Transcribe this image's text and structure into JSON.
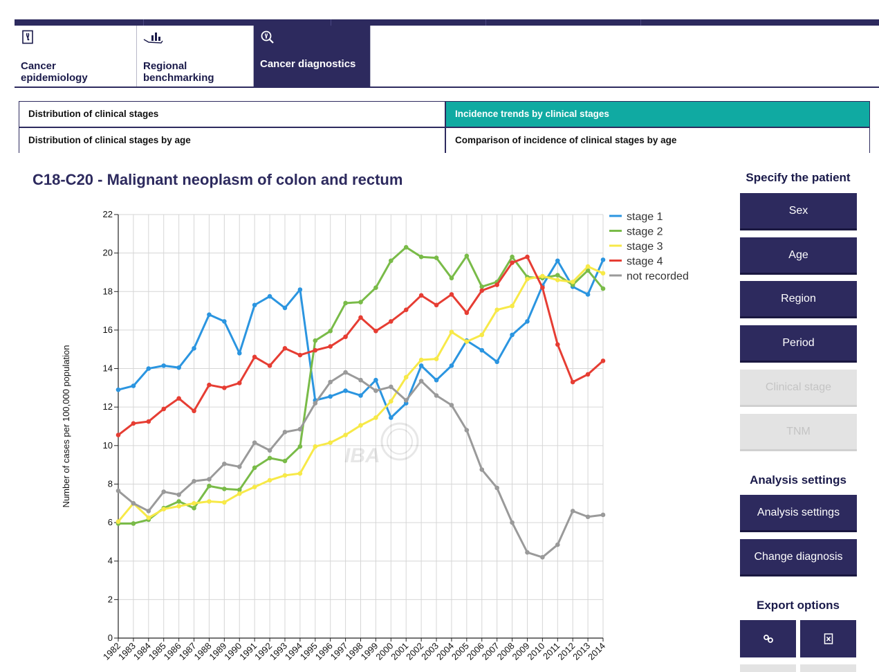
{
  "modules": [
    {
      "label": "Cancer\nepidemiology",
      "icon": "ribbon-document-icon",
      "active": false
    },
    {
      "label": "Regional\nbenchmarking",
      "icon": "hand-chart-icon",
      "active": false
    },
    {
      "label": "Cancer diagnostics",
      "icon": "ribbon-magnifier-icon",
      "active": true
    }
  ],
  "subtabs": {
    "stages": "Distribution of clinical stages",
    "trends": "Incidence trends by clinical stages",
    "stages_age": "Distribution of clinical stages by age",
    "comparison": "Comparison of incidence of clinical stages by age"
  },
  "chart_title": "C18-C20 - Malignant neoplasm of colon and rectum",
  "sidebar": {
    "patient_heading": "Specify the patient",
    "sex": "Sex",
    "age": "Age",
    "region": "Region",
    "period": "Period",
    "clinical_stage": "Clinical stage",
    "tnm": "TNM",
    "analysis_heading": "Analysis settings",
    "analysis_button": "Analysis settings",
    "change_diagnosis": "Change diagnosis",
    "export_heading": "Export options",
    "export_link_icon": "link-icon",
    "export_excel_icon": "excel-export-icon"
  },
  "watermark": {
    "logo": "IBA",
    "seal": "muni-seal"
  },
  "colors": {
    "navy": "#2d2a5e",
    "teal": "#10aaa2",
    "stage1": "#2b95e0",
    "stage2": "#79bb48",
    "stage3": "#f7e948",
    "stage4": "#e63d33",
    "not_recorded": "#9a9a9a"
  },
  "chart_data": {
    "type": "line",
    "title": "C18-C20 - Malignant neoplasm of colon and rectum",
    "xlabel": "",
    "ylabel": "Number of cases per 100,000 population",
    "ylim": [
      0,
      22
    ],
    "yticks": [
      0,
      2,
      4,
      6,
      8,
      10,
      12,
      14,
      16,
      18,
      20,
      22
    ],
    "grid": true,
    "legend": "top-right",
    "x": [
      "1982",
      "1983",
      "1984",
      "1985",
      "1986",
      "1987",
      "1988",
      "1989",
      "1990",
      "1991",
      "1992",
      "1993",
      "1994",
      "1995",
      "1996",
      "1997",
      "1998",
      "1999",
      "2000",
      "2001",
      "2002",
      "2003",
      "2004",
      "2005",
      "2006",
      "2007",
      "2008",
      "2009",
      "2010",
      "2011",
      "2012",
      "2013",
      "2014"
    ],
    "series": [
      {
        "name": "stage 1",
        "color": "#2b95e0",
        "values": [
          12.9,
          13.1,
          14.0,
          14.15,
          14.05,
          15.05,
          16.8,
          16.45,
          14.8,
          17.3,
          17.75,
          17.15,
          18.1,
          12.35,
          12.55,
          12.85,
          12.6,
          13.4,
          11.45,
          12.2,
          14.15,
          13.4,
          14.15,
          15.45,
          14.95,
          14.35,
          15.75,
          16.45,
          18.3,
          19.6,
          18.25,
          17.85,
          19.65
        ]
      },
      {
        "name": "stage 2",
        "color": "#79bb48",
        "values": [
          5.95,
          5.95,
          6.15,
          6.75,
          7.1,
          6.75,
          7.9,
          7.75,
          7.7,
          8.85,
          9.35,
          9.2,
          9.95,
          15.45,
          15.95,
          17.4,
          17.45,
          18.2,
          19.6,
          20.3,
          19.8,
          19.75,
          18.7,
          19.85,
          18.25,
          18.5,
          19.8,
          18.75,
          18.7,
          18.85,
          18.35,
          19.1,
          18.15
        ]
      },
      {
        "name": "stage 3",
        "color": "#f7e948",
        "values": [
          6.05,
          7.0,
          6.25,
          6.7,
          6.85,
          7.0,
          7.1,
          7.05,
          7.5,
          7.85,
          8.2,
          8.45,
          8.55,
          9.95,
          10.15,
          10.55,
          11.05,
          11.45,
          12.3,
          13.55,
          14.45,
          14.5,
          15.9,
          15.4,
          15.75,
          17.05,
          17.25,
          18.65,
          18.8,
          18.6,
          18.5,
          19.3,
          18.95
        ]
      },
      {
        "name": "stage 4",
        "color": "#e63d33",
        "values": [
          10.55,
          11.15,
          11.25,
          11.9,
          12.45,
          11.8,
          13.15,
          13.0,
          13.25,
          14.6,
          14.15,
          15.05,
          14.7,
          14.95,
          15.15,
          15.65,
          16.65,
          15.95,
          16.45,
          17.05,
          17.8,
          17.3,
          17.85,
          16.9,
          18.05,
          18.35,
          19.5,
          19.8,
          18.2,
          15.25,
          13.3,
          13.7,
          14.4
        ]
      },
      {
        "name": "not recorded",
        "color": "#9a9a9a",
        "values": [
          7.65,
          7.0,
          6.6,
          7.6,
          7.45,
          8.15,
          8.25,
          9.05,
          8.9,
          10.15,
          9.75,
          10.7,
          10.85,
          12.2,
          13.3,
          13.8,
          13.4,
          12.85,
          13.05,
          12.35,
          13.35,
          12.6,
          12.1,
          10.8,
          8.75,
          7.8,
          6.0,
          4.45,
          4.2,
          4.85,
          6.6,
          6.3,
          6.4
        ]
      }
    ]
  }
}
